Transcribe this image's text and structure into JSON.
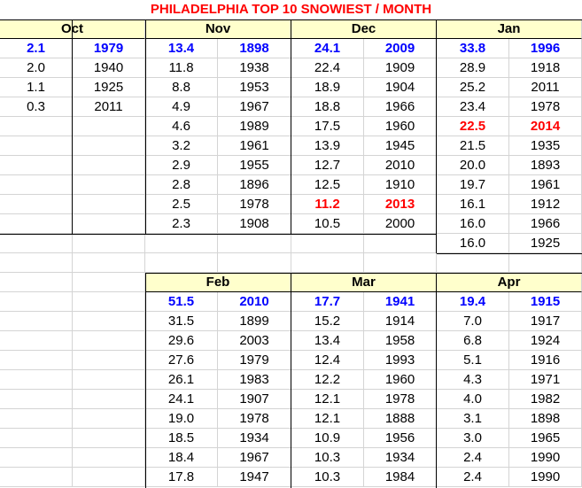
{
  "title": "PHILADELPHIA TOP 10 SNOWIEST / MONTH",
  "colors": {
    "highlight_max": "#0000ff",
    "highlight_recent": "#ff0000",
    "header_fill": "#ffffcc"
  },
  "months": [
    {
      "name": "Oct",
      "rows": [
        {
          "snow": "2.1",
          "year": "1979",
          "style": "blue"
        },
        {
          "snow": "2.0",
          "year": "1940"
        },
        {
          "snow": "1.1",
          "year": "1925"
        },
        {
          "snow": "0.3",
          "year": "2011"
        }
      ]
    },
    {
      "name": "Nov",
      "rows": [
        {
          "snow": "13.4",
          "year": "1898",
          "style": "blue"
        },
        {
          "snow": "11.8",
          "year": "1938"
        },
        {
          "snow": "8.8",
          "year": "1953"
        },
        {
          "snow": "4.9",
          "year": "1967"
        },
        {
          "snow": "4.6",
          "year": "1989"
        },
        {
          "snow": "3.2",
          "year": "1961"
        },
        {
          "snow": "2.9",
          "year": "1955"
        },
        {
          "snow": "2.8",
          "year": "1896"
        },
        {
          "snow": "2.5",
          "year": "1978"
        },
        {
          "snow": "2.3",
          "year": "1908"
        }
      ]
    },
    {
      "name": "Dec",
      "rows": [
        {
          "snow": "24.1",
          "year": "2009",
          "style": "blue"
        },
        {
          "snow": "22.4",
          "year": "1909"
        },
        {
          "snow": "18.9",
          "year": "1904"
        },
        {
          "snow": "18.8",
          "year": "1966"
        },
        {
          "snow": "17.5",
          "year": "1960"
        },
        {
          "snow": "13.9",
          "year": "1945"
        },
        {
          "snow": "12.7",
          "year": "2010"
        },
        {
          "snow": "12.5",
          "year": "1910"
        },
        {
          "snow": "11.2",
          "year": "2013",
          "style": "red"
        },
        {
          "snow": "10.5",
          "year": "2000"
        }
      ]
    },
    {
      "name": "Jan",
      "rows": [
        {
          "snow": "33.8",
          "year": "1996",
          "style": "blue"
        },
        {
          "snow": "28.9",
          "year": "1918"
        },
        {
          "snow": "25.2",
          "year": "2011"
        },
        {
          "snow": "23.4",
          "year": "1978"
        },
        {
          "snow": "22.5",
          "year": "2014",
          "style": "red"
        },
        {
          "snow": "21.5",
          "year": "1935"
        },
        {
          "snow": "20.0",
          "year": "1893"
        },
        {
          "snow": "19.7",
          "year": "1961"
        },
        {
          "snow": "16.1",
          "year": "1912"
        },
        {
          "snow": "16.0",
          "year": "1966"
        },
        {
          "snow": "16.0",
          "year": "1925"
        }
      ]
    },
    {
      "name": "Feb",
      "rows": [
        {
          "snow": "51.5",
          "year": "2010",
          "style": "blue"
        },
        {
          "snow": "31.5",
          "year": "1899"
        },
        {
          "snow": "29.6",
          "year": "2003"
        },
        {
          "snow": "27.6",
          "year": "1979"
        },
        {
          "snow": "26.1",
          "year": "1983"
        },
        {
          "snow": "24.1",
          "year": "1907"
        },
        {
          "snow": "19.0",
          "year": "1978"
        },
        {
          "snow": "18.5",
          "year": "1934"
        },
        {
          "snow": "18.4",
          "year": "1967"
        },
        {
          "snow": "17.8",
          "year": "1947"
        }
      ]
    },
    {
      "name": "Mar",
      "rows": [
        {
          "snow": "17.7",
          "year": "1941",
          "style": "blue"
        },
        {
          "snow": "15.2",
          "year": "1914"
        },
        {
          "snow": "13.4",
          "year": "1958"
        },
        {
          "snow": "12.4",
          "year": "1993"
        },
        {
          "snow": "12.2",
          "year": "1960"
        },
        {
          "snow": "12.1",
          "year": "1978"
        },
        {
          "snow": "12.1",
          "year": "1888"
        },
        {
          "snow": "10.9",
          "year": "1956"
        },
        {
          "snow": "10.3",
          "year": "1934"
        },
        {
          "snow": "10.3",
          "year": "1984"
        }
      ]
    },
    {
      "name": "Apr",
      "rows": [
        {
          "snow": "19.4",
          "year": "1915",
          "style": "blue"
        },
        {
          "snow": "7.0",
          "year": "1917"
        },
        {
          "snow": "6.8",
          "year": "1924"
        },
        {
          "snow": "5.1",
          "year": "1916"
        },
        {
          "snow": "4.3",
          "year": "1971"
        },
        {
          "snow": "4.0",
          "year": "1982"
        },
        {
          "snow": "3.1",
          "year": "1898"
        },
        {
          "snow": "3.0",
          "year": "1965"
        },
        {
          "snow": "2.4",
          "year": "1990"
        },
        {
          "snow": "2.4",
          "year": "1990"
        }
      ]
    }
  ]
}
